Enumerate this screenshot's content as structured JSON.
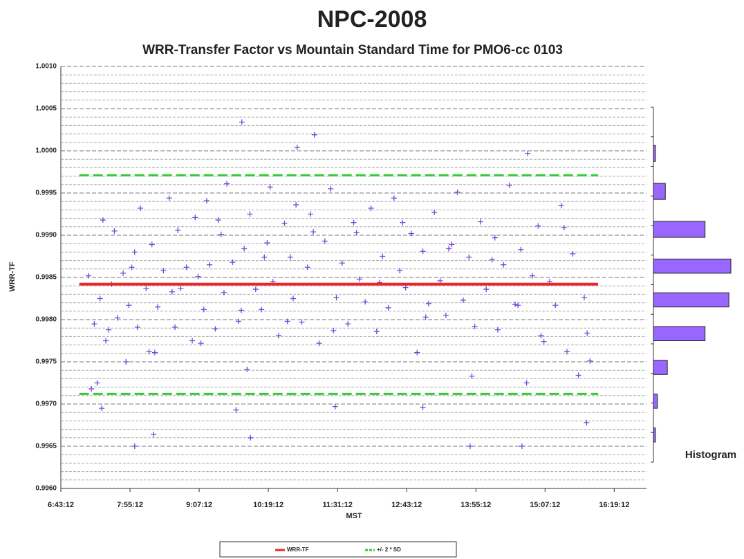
{
  "chart_data": {
    "type": "scatter",
    "title": "NPC-2008",
    "subtitle": "WRR-Transfer Factor vs Mountain Standard Time for PMO6-cc 0103",
    "x_label": "MST",
    "y_label": "WRR-TF",
    "xlim": [
      6.72,
      16.88
    ],
    "xticks": [
      {
        "value": 6.72,
        "label": "6:43:12"
      },
      {
        "value": 7.92,
        "label": "7:55:12"
      },
      {
        "value": 9.12,
        "label": "9:07:12"
      },
      {
        "value": 10.32,
        "label": "10:19:12"
      },
      {
        "value": 11.52,
        "label": "11:31:12"
      },
      {
        "value": 12.72,
        "label": "12:43:12"
      },
      {
        "value": 13.92,
        "label": "13:55:12"
      },
      {
        "value": 15.12,
        "label": "15:07:12"
      },
      {
        "value": 16.32,
        "label": "16:19:12"
      }
    ],
    "ylim": [
      0.996,
      1.001
    ],
    "yticks": [
      {
        "value": 0.996,
        "label": "0.9960"
      },
      {
        "value": 0.9965,
        "label": "0.9965"
      },
      {
        "value": 0.997,
        "label": "0.9970"
      },
      {
        "value": 0.9975,
        "label": "0.9975"
      },
      {
        "value": 0.998,
        "label": "0.9980"
      },
      {
        "value": 0.9985,
        "label": "0.9985"
      },
      {
        "value": 0.999,
        "label": "0.9990"
      },
      {
        "value": 0.9995,
        "label": "0.9995"
      },
      {
        "value": 1.0,
        "label": "1.0000"
      },
      {
        "value": 1.0005,
        "label": "1.0005"
      },
      {
        "value": 1.001,
        "label": "1.0010"
      }
    ],
    "grid": true,
    "minor_grid": true,
    "points": {
      "color": "#7744dd",
      "x": [
        9.86,
        11.12,
        10.82,
        14.82,
        15.84,
        8.33,
        10.01,
        8.0,
        13.82,
        14.72,
        9.76,
        7.43,
        11.48,
        13.0,
        7.2,
        7.3,
        7.35,
        7.4,
        7.45,
        7.5,
        7.6,
        7.65,
        7.7,
        7.8,
        7.85,
        7.9,
        8.0,
        8.05,
        8.1,
        8.2,
        8.25,
        8.3,
        8.4,
        8.5,
        8.6,
        8.7,
        8.75,
        8.8,
        8.9,
        9.0,
        9.05,
        9.1,
        9.2,
        9.25,
        9.3,
        9.4,
        9.5,
        9.55,
        9.6,
        9.7,
        9.8,
        9.9,
        9.95,
        10.0,
        10.1,
        10.2,
        10.3,
        10.35,
        10.4,
        10.5,
        10.6,
        10.7,
        10.75,
        10.8,
        10.9,
        11.0,
        11.1,
        11.2,
        11.3,
        11.4,
        11.5,
        11.6,
        11.7,
        11.8,
        11.9,
        12.0,
        12.1,
        12.2,
        12.3,
        12.4,
        12.5,
        12.6,
        12.7,
        12.8,
        12.9,
        13.0,
        13.1,
        13.2,
        13.3,
        13.4,
        13.5,
        13.6,
        13.7,
        13.8,
        13.9,
        14.0,
        14.1,
        14.2,
        14.3,
        14.4,
        14.5,
        14.6,
        14.7,
        14.8,
        14.9,
        15.0,
        15.1,
        15.2,
        15.3,
        15.4,
        15.5,
        15.6,
        15.7,
        15.8,
        15.9,
        7.25,
        7.55,
        7.95,
        8.35,
        8.65,
        9.15,
        9.45,
        9.85,
        10.25,
        10.65,
        11.05,
        11.45,
        11.85,
        12.25,
        12.65,
        13.05,
        13.45,
        13.85,
        14.25,
        14.65,
        15.05,
        15.45,
        15.85
      ],
      "values": [
        1.00034,
        1.00019,
        1.00004,
        0.99997,
        0.99678,
        0.99664,
        0.9966,
        0.9965,
        0.9965,
        0.9965,
        0.99693,
        0.99695,
        0.99697,
        0.99696,
        0.99852,
        0.99795,
        0.99725,
        0.99825,
        0.99918,
        0.99775,
        0.99842,
        0.99905,
        0.99802,
        0.99855,
        0.9975,
        0.99817,
        0.9988,
        0.99791,
        0.99932,
        0.99837,
        0.99762,
        0.99889,
        0.99815,
        0.99858,
        0.99944,
        0.99791,
        0.99906,
        0.99837,
        0.99862,
        0.99775,
        0.99921,
        0.99851,
        0.99812,
        0.99941,
        0.99865,
        0.99789,
        0.99901,
        0.99832,
        0.99961,
        0.99868,
        0.99798,
        0.99884,
        0.99741,
        0.99925,
        0.99836,
        0.99812,
        0.99891,
        0.99957,
        0.99845,
        0.99781,
        0.99914,
        0.99874,
        0.99825,
        0.99936,
        0.99797,
        0.99862,
        0.99904,
        0.99772,
        0.99893,
        0.99955,
        0.99826,
        0.99867,
        0.99795,
        0.99915,
        0.99848,
        0.99821,
        0.99932,
        0.99786,
        0.99875,
        0.99814,
        0.99944,
        0.99858,
        0.99838,
        0.99902,
        0.99761,
        0.99881,
        0.99819,
        0.99927,
        0.99846,
        0.99805,
        0.99889,
        0.99951,
        0.99823,
        0.99874,
        0.99792,
        0.99916,
        0.99836,
        0.99871,
        0.99788,
        0.99865,
        0.99959,
        0.99818,
        0.99883,
        0.99725,
        0.99852,
        0.99911,
        0.99774,
        0.99845,
        0.99817,
        0.99935,
        0.99762,
        0.99878,
        0.99734,
        0.99826,
        0.99751,
        0.99718,
        0.99788,
        0.99862,
        0.99761,
        0.99833,
        0.99772,
        0.99918,
        0.99811,
        0.99874,
        0.99798,
        0.99925,
        0.99787,
        0.99903,
        0.99844,
        0.99915,
        0.99803,
        0.99884,
        0.99733,
        0.99897,
        0.99817,
        0.99781,
        0.99909,
        0.99784
      ]
    },
    "lines": [
      {
        "name": "WRR-TF",
        "color": "#e8262a",
        "x": [
          7.04,
          16.04
        ],
        "values": [
          0.99842,
          0.99842
        ]
      },
      {
        "name": "+/- 2 * SD",
        "color": "#33cc33",
        "x": [
          7.04,
          16.04
        ],
        "values": [
          0.99971,
          0.99712
        ]
      }
    ],
    "histogram": {
      "label": "Histogram",
      "color": "#9966ff",
      "bins": [
        0.99635,
        0.99675,
        0.99715,
        0.99755,
        0.99795,
        0.99835,
        0.99875,
        0.9992,
        0.99965,
        1.0001
      ],
      "counts": [
        1,
        2,
        7,
        26,
        38,
        39,
        26,
        6,
        1
      ]
    }
  }
}
